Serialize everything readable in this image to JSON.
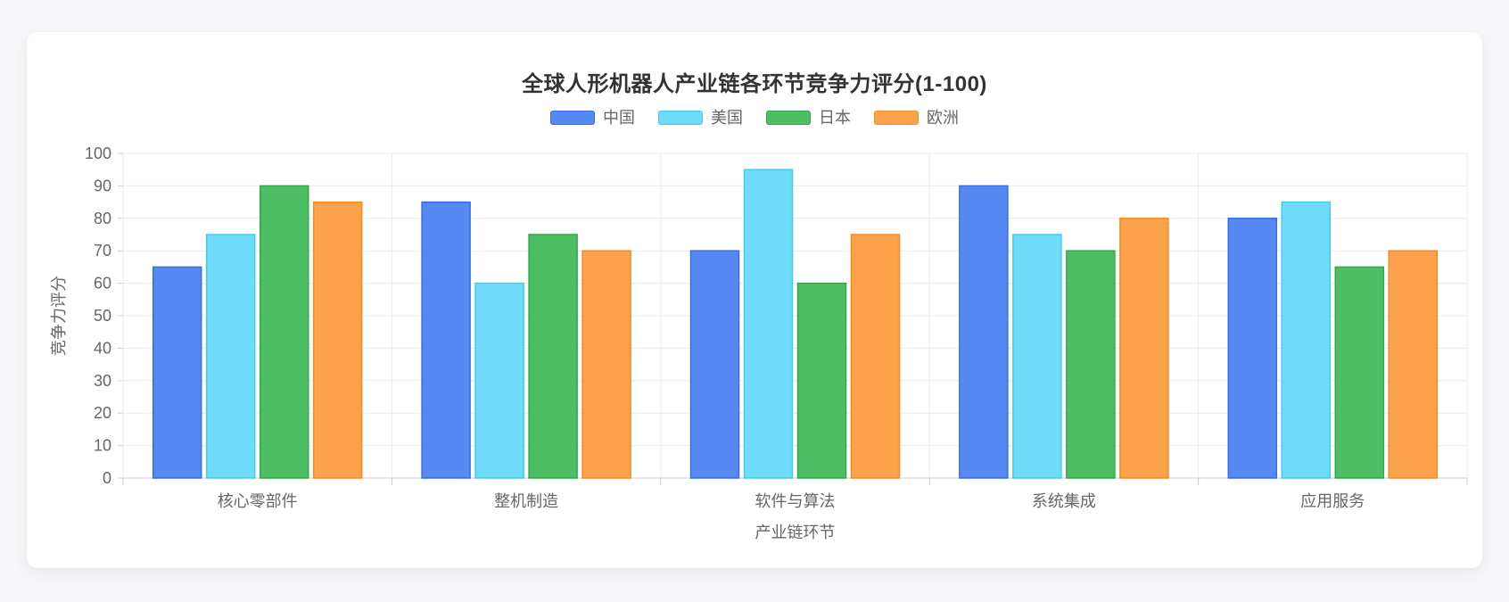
{
  "page": {
    "background_color": "#f7f7f9",
    "card_background_color": "#ffffff"
  },
  "chart_data": {
    "type": "bar",
    "title": "全球人形机器人产业链各环节竞争力评分(1-100)",
    "xlabel": "产业链环节",
    "ylabel": "竞争力评分",
    "categories": [
      "核心零部件",
      "整机制造",
      "软件与算法",
      "系统集成",
      "应用服务"
    ],
    "series": [
      {
        "name": "中国",
        "values": [
          65,
          85,
          70,
          90,
          80
        ],
        "color": "#568af2",
        "border_color": "#3a6be4"
      },
      {
        "name": "美国",
        "values": [
          75,
          60,
          95,
          75,
          85
        ],
        "color": "#6edcf8",
        "border_color": "#41cbf2"
      },
      {
        "name": "日本",
        "values": [
          90,
          75,
          60,
          70,
          65
        ],
        "color": "#4ebe63",
        "border_color": "#2ea84c"
      },
      {
        "name": "欧洲",
        "values": [
          85,
          70,
          75,
          80,
          70
        ],
        "color": "#fba24b",
        "border_color": "#f48c23"
      }
    ],
    "ylim": [
      0,
      100
    ],
    "yticks": [
      0,
      10,
      20,
      30,
      40,
      50,
      60,
      70,
      80,
      90,
      100
    ],
    "grid": true,
    "legend_position": "top",
    "grid_color": "#ececec",
    "axis_color": "#cccccc",
    "title_color": "#333333",
    "label_color": "#666666"
  }
}
